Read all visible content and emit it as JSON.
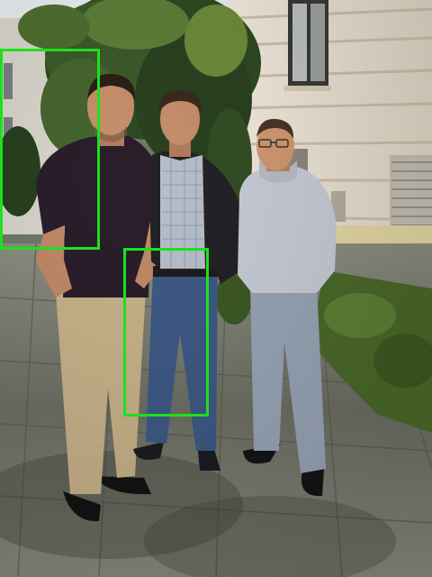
{
  "image": {
    "box_color": "#1de01d",
    "colors": {
      "building_wall": "#efe6d6",
      "foliage_dark": "#2f4a23",
      "foliage_light": "#6e8c3a",
      "pavement": "#7d7f72",
      "grass": "#4c6b2a",
      "sky": "#e9eef0"
    },
    "people": [
      {
        "shirt": "#2a1e2a",
        "trousers": "#c8b38a",
        "skin": "#c8906c"
      },
      {
        "shirt": "#b8c0cc",
        "jacket": "#232226",
        "trousers": "#3e5a86",
        "skin": "#c78f6c"
      },
      {
        "sweater": "#c9ced8",
        "trousers": "#9aa6b8",
        "skin": "#d29a72"
      }
    ]
  }
}
